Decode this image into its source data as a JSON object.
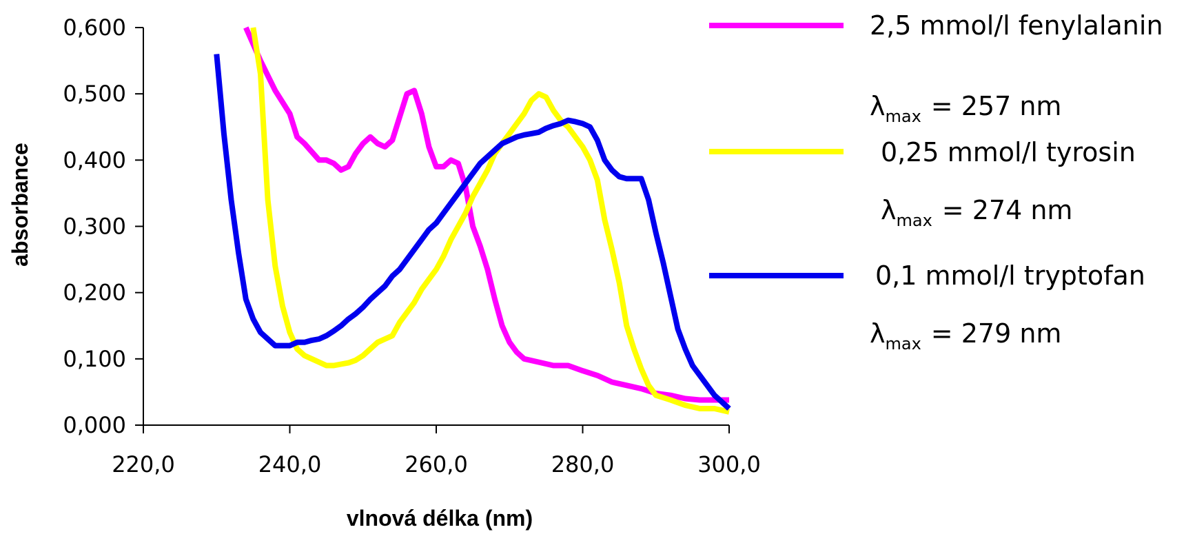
{
  "chart_data": {
    "type": "line",
    "xlabel": "vlnová délka (nm)",
    "ylabel": "absorbance",
    "xlim": [
      220,
      300
    ],
    "ylim": [
      0,
      0.6
    ],
    "x_ticks": [
      220,
      240,
      260,
      280,
      300
    ],
    "x_tick_labels": [
      "220,0",
      "240,0",
      "260,0",
      "280,0",
      "300,0"
    ],
    "y_ticks": [
      0,
      0.1,
      0.2,
      0.3,
      0.4,
      0.5,
      0.6
    ],
    "y_tick_labels": [
      "0,000",
      "0,100",
      "0,200",
      "0,300",
      "0,400",
      "0,500",
      "0,600"
    ],
    "grid": false,
    "legend_position": "right",
    "series": [
      {
        "name": "2,5 mmol/l fenylalanin",
        "color": "#ff00ff",
        "lambda_label": "λ",
        "lambda_sub": "max",
        "lambda_value": "= 257 nm",
        "x": [
          234,
          236,
          238,
          240,
          241,
          242,
          244,
          245,
          246,
          247,
          248,
          249,
          250,
          251,
          252,
          253,
          254,
          255,
          256,
          257,
          258,
          259,
          260,
          261,
          262,
          263,
          264,
          265,
          266,
          267,
          268,
          269,
          270,
          271,
          272,
          274,
          276,
          278,
          280,
          282,
          284,
          286,
          288,
          290,
          292,
          294,
          296,
          298,
          300
        ],
        "y": [
          0.6,
          0.55,
          0.505,
          0.47,
          0.435,
          0.425,
          0.4,
          0.4,
          0.395,
          0.385,
          0.39,
          0.41,
          0.425,
          0.435,
          0.425,
          0.42,
          0.43,
          0.465,
          0.5,
          0.505,
          0.47,
          0.42,
          0.39,
          0.39,
          0.4,
          0.395,
          0.36,
          0.3,
          0.27,
          0.235,
          0.19,
          0.15,
          0.125,
          0.11,
          0.1,
          0.095,
          0.09,
          0.09,
          0.082,
          0.075,
          0.065,
          0.06,
          0.055,
          0.048,
          0.045,
          0.04,
          0.038,
          0.038,
          0.038
        ]
      },
      {
        "name": "0,25 mmol/l tyrosin",
        "color": "#ffff00",
        "lambda_label": "λ",
        "lambda_sub": "max",
        "lambda_value": "= 274 nm",
        "x": [
          235,
          236,
          237,
          238,
          239,
          240,
          241,
          242,
          243,
          244,
          245,
          246,
          247,
          248,
          249,
          250,
          251,
          252,
          253,
          254,
          255,
          256,
          257,
          258,
          259,
          260,
          261,
          262,
          263,
          264,
          265,
          266,
          267,
          268,
          269,
          270,
          271,
          272,
          273,
          274,
          275,
          276,
          277,
          278,
          279,
          280,
          281,
          282,
          283,
          284,
          285,
          286,
          287,
          288,
          289,
          290,
          292,
          294,
          296,
          298,
          300
        ],
        "y": [
          0.6,
          0.53,
          0.34,
          0.24,
          0.18,
          0.14,
          0.115,
          0.105,
          0.1,
          0.095,
          0.09,
          0.09,
          0.092,
          0.094,
          0.098,
          0.105,
          0.115,
          0.125,
          0.13,
          0.135,
          0.155,
          0.17,
          0.185,
          0.205,
          0.22,
          0.235,
          0.255,
          0.28,
          0.3,
          0.32,
          0.345,
          0.365,
          0.385,
          0.41,
          0.425,
          0.44,
          0.455,
          0.47,
          0.49,
          0.5,
          0.495,
          0.475,
          0.46,
          0.45,
          0.435,
          0.42,
          0.4,
          0.37,
          0.31,
          0.265,
          0.215,
          0.15,
          0.115,
          0.085,
          0.06,
          0.045,
          0.038,
          0.03,
          0.025,
          0.025,
          0.02
        ]
      },
      {
        "name": "0,1 mmol/l tryptofan",
        "color": "#0000ee",
        "lambda_label": "λ",
        "lambda_sub": "max",
        "lambda_value": "= 279 nm",
        "x": [
          230,
          231,
          232,
          233,
          234,
          235,
          236,
          237,
          238,
          239,
          240,
          241,
          242,
          243,
          244,
          245,
          246,
          247,
          248,
          249,
          250,
          251,
          252,
          253,
          254,
          255,
          256,
          257,
          258,
          259,
          260,
          261,
          262,
          263,
          264,
          265,
          266,
          267,
          268,
          269,
          270,
          271,
          272,
          273,
          274,
          275,
          276,
          277,
          278,
          279,
          280,
          281,
          282,
          283,
          284,
          285,
          286,
          287,
          288,
          289,
          290,
          291,
          292,
          293,
          294,
          295,
          296,
          297,
          298,
          299,
          300
        ],
        "y": [
          0.56,
          0.44,
          0.34,
          0.26,
          0.19,
          0.16,
          0.14,
          0.13,
          0.12,
          0.12,
          0.12,
          0.125,
          0.125,
          0.128,
          0.13,
          0.135,
          0.142,
          0.15,
          0.16,
          0.168,
          0.178,
          0.19,
          0.2,
          0.21,
          0.225,
          0.235,
          0.25,
          0.265,
          0.28,
          0.295,
          0.305,
          0.32,
          0.335,
          0.35,
          0.365,
          0.38,
          0.395,
          0.405,
          0.415,
          0.425,
          0.43,
          0.435,
          0.438,
          0.44,
          0.442,
          0.448,
          0.452,
          0.455,
          0.46,
          0.458,
          0.455,
          0.45,
          0.43,
          0.4,
          0.385,
          0.375,
          0.372,
          0.372,
          0.372,
          0.34,
          0.29,
          0.245,
          0.195,
          0.145,
          0.115,
          0.09,
          0.075,
          0.06,
          0.045,
          0.035,
          0.025
        ]
      }
    ]
  }
}
